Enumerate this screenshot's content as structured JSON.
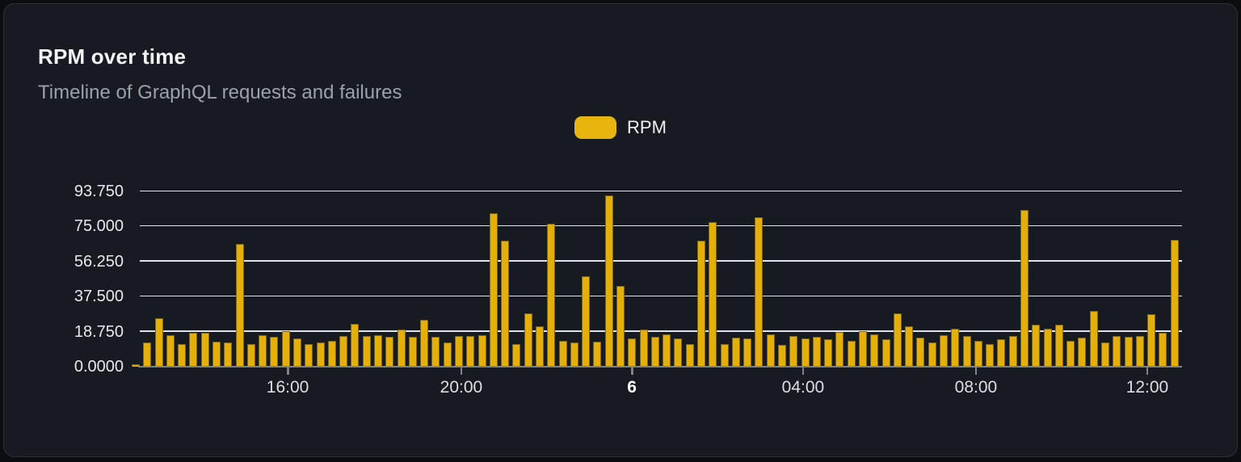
{
  "card": {
    "title": "RPM over time",
    "subtitle": "Timeline of GraphQL requests and failures"
  },
  "legend": {
    "label": "RPM",
    "swatch_color": "#e8b50e"
  },
  "colors": {
    "bar_fill": "#e4af09",
    "bar_border": "#7a651b",
    "gridline": "#dfe4ec",
    "axis": "#7f848c",
    "card_bg": "#171a20",
    "page_bg": "#0c0d10"
  },
  "chart_data": {
    "type": "bar",
    "title": "RPM over time",
    "subtitle": "Timeline of GraphQL requests and failures",
    "ylabel": "",
    "xlabel": "",
    "ylim": [
      0,
      93.75
    ],
    "grid": true,
    "legend_position": "top-center",
    "y_ticks": [
      {
        "label": "0.0000",
        "value": 0
      },
      {
        "label": "18.750",
        "value": 18.75
      },
      {
        "label": "37.500",
        "value": 37.5
      },
      {
        "label": "56.250",
        "value": 56.25
      },
      {
        "label": "75.000",
        "value": 75
      },
      {
        "label": "93.750",
        "value": 93.75
      }
    ],
    "grid_values": [
      18.75,
      37.5,
      56.25,
      75,
      93.75
    ],
    "x_ticks": [
      {
        "label": "16:00",
        "pos": 0.1485,
        "bold": false
      },
      {
        "label": "20:00",
        "pos": 0.3138,
        "bold": false
      },
      {
        "label": "6",
        "pos": 0.4762,
        "bold": true
      },
      {
        "label": "04:00",
        "pos": 0.6392,
        "bold": false
      },
      {
        "label": "08:00",
        "pos": 0.8038,
        "bold": false
      },
      {
        "label": "12:00",
        "pos": 0.9669,
        "bold": false
      }
    ],
    "series": [
      {
        "name": "RPM",
        "values": [
          1.5,
          13,
          26,
          17,
          12,
          18,
          18,
          13.5,
          13,
          65.5,
          12,
          17,
          16,
          19,
          15,
          12,
          13,
          14,
          16.5,
          23,
          16.5,
          17,
          16,
          20,
          16,
          25,
          16,
          13,
          16.5,
          16.5,
          17,
          82,
          67.5,
          12,
          28.5,
          21.5,
          76.5,
          14,
          13,
          48.5,
          13.5,
          91.5,
          43,
          15,
          20,
          16,
          17.5,
          15,
          12,
          67.5,
          77.5,
          12,
          15.5,
          15,
          80,
          17.5,
          11.5,
          16.5,
          15,
          16,
          14.5,
          18.5,
          14,
          19,
          17.5,
          14.5,
          28.5,
          21.5,
          15.5,
          13,
          17,
          20.5,
          16.5,
          14,
          12,
          14.5,
          16.5,
          84,
          22.5,
          20.5,
          22.5,
          14,
          15.5,
          30,
          13,
          16.5,
          16,
          16.5,
          28,
          18,
          68
        ]
      }
    ]
  }
}
